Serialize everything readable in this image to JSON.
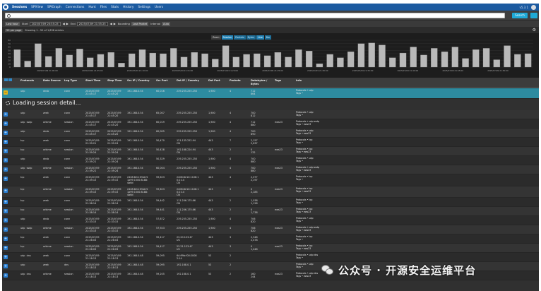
{
  "nav": {
    "items": [
      "Sessions",
      "SPIView",
      "SPIGraph",
      "Connections",
      "Hunt",
      "Files",
      "Stats",
      "History",
      "Settings",
      "Users"
    ],
    "version": "v5.3.1"
  },
  "search": {
    "placeholder": "",
    "button": "Search"
  },
  "timebar": {
    "range": "Last hour",
    "start_label": "Start",
    "start": "2025/07/09 20:55:25",
    "stop_label": "End",
    "stop": "2025/07/09 21:55:25",
    "bounding_label": "Bounding",
    "bounding": "Last Packet",
    "interval_label": "Interval",
    "interval": "Auto"
  },
  "vizbar": {
    "page_size": "50 per page",
    "showing": "Showing 1 - 50 of 1,836 entries"
  },
  "chart_controls": [
    "Zoom",
    "Session",
    "Packets",
    "Bytes",
    "Line",
    "Bar"
  ],
  "chart_data": {
    "type": "bar",
    "ylim": [
      0,
      80
    ],
    "y_ticks": [
      0,
      10,
      20,
      30,
      40,
      50,
      60,
      70,
      80
    ],
    "x_ticks": [
      "2025/07/09 21:00:00",
      "2025/07/09 21:05:00",
      "2025/07/09 21:10:00",
      "2025/07/09 21:15:00",
      "2025/07/09 21:20:00",
      "2025/07/09 21:25:00",
      "2025/07/09 21:30:00",
      "2025/07/09 21:35:00",
      "2025/07/09 21:40:00",
      "2025/07/09 21:45:00",
      "2025/07/09 21:50:00"
    ],
    "values": [
      52,
      18,
      70,
      32,
      56,
      36,
      54,
      28,
      38,
      44,
      12,
      40,
      52,
      42,
      40,
      56,
      30,
      44,
      40,
      24,
      64,
      30,
      38,
      40,
      34,
      44,
      30,
      52,
      48,
      10,
      38,
      28,
      46,
      70,
      72,
      66,
      28,
      42,
      60,
      36,
      56,
      46,
      60,
      26,
      52,
      56,
      22,
      64,
      38,
      40
    ]
  },
  "table": {
    "headers": [
      "Protocols",
      "Data Source",
      "Log Type",
      "Start Time",
      "Stop Time",
      "Src IP / Country",
      "Src Port",
      "Dst IP / Country",
      "Dst Port",
      "Packets",
      "Databytes / Bytes",
      "Tags",
      "Info"
    ],
    "loading_text": "Loading session detail...",
    "rows": [
      {
        "proto": "udp",
        "src": "dnsb",
        "log": "conn",
        "start": "2025/07/09\n21:45:17",
        "stop": "2025/07/09\n21:45:20",
        "srcip": "192.168.0.54",
        "sport": "60,016",
        "dstip": "239.255.255.250",
        "dport": "1,900",
        "pkts": "4",
        "bytes": "712\n864",
        "tags": "",
        "info1": "Protocols • udp",
        "info2": "Tags •"
      },
      {
        "proto": "udp",
        "src": "zeek",
        "log": "conn",
        "start": "2025/07/09\n21:45:17",
        "stop": "2025/07/09\n21:45:20",
        "srcip": "192.168.0.54",
        "sport": "65,007",
        "dstip": "239.255.255.250",
        "dport": "1,900",
        "pkts": "4",
        "bytes": "700\n812",
        "tags": "",
        "info1": "Protocols • udp",
        "info2": "Tags •"
      },
      {
        "proto": "udp  ssdp",
        "src": "arkime",
        "log": "session",
        "start": "2025/07/09\n21:45:17",
        "stop": "2025/07/09\n21:45:20",
        "srcip": "192.168.0.54",
        "sport": "60,019",
        "dstip": "239.255.255.250",
        "dport": "1,900",
        "pkts": "4",
        "bytes": "712\n880",
        "tags": "ews23",
        "info1": "Protocols • udp  ssdp",
        "info2": "Tags • ews23"
      },
      {
        "proto": "udp",
        "src": "dnsb",
        "log": "conn",
        "start": "2025/07/09\n21:45:17",
        "stop": "2025/07/09\n21:45:20",
        "srcip": "192.168.0.54",
        "sport": "60,005",
        "dstip": "239.255.255.250",
        "dport": "1,900",
        "pkts": "4",
        "bytes": "700\n890",
        "tags": "",
        "info1": "Protocols • udp",
        "info2": "Tags • ews23"
      },
      {
        "proto": "tcp",
        "src": "zeek",
        "log": "conn",
        "start": "2025/07/09\n21:39:21",
        "stop": "2025/07/09\n21:39:24",
        "srcip": "192.168.0.54",
        "sport": "50,470",
        "dstip": "121.135.252.94\nCN",
        "dport": "443",
        "pkts": "7",
        "bytes": "2,157\n2,637",
        "tags": "",
        "info1": "Protocols • tcp",
        "info2": "Tags •"
      },
      {
        "proto": "tcp",
        "src": "arkime",
        "log": "session",
        "start": "2025/07/09\n21:39:24",
        "stop": "2025/07/09\n21:39:24",
        "srcip": "192.168.0.54",
        "sport": "50,428",
        "dstip": "192.168.224.94\nCN",
        "dport": "443",
        "pkts": "2",
        "bytes": "0\n132",
        "tags": "ews23",
        "info1": "Protocols • tcp",
        "info2": "Tags • ews23"
      },
      {
        "proto": "udp",
        "src": "dnsb",
        "log": "conn",
        "start": "2025/07/09\n21:39:21",
        "stop": "2025/07/09\n21:39:24",
        "srcip": "192.168.0.54",
        "sport": "50,329",
        "dstip": "239.255.255.250",
        "dport": "1,900",
        "pkts": "4",
        "bytes": "700\n880",
        "tags": "",
        "info1": "Protocols • udp",
        "info2": "Tags •"
      },
      {
        "proto": "udp  ssdp",
        "src": "arkime",
        "log": "session",
        "start": "2025/07/09\n21:39:21",
        "stop": "2025/07/09\n21:39:24",
        "srcip": "192.168.0.54",
        "sport": "60,004",
        "dstip": "239.255.255.250",
        "dport": "1,900",
        "pkts": "4",
        "bytes": "700\n880",
        "tags": "ews23",
        "info1": "Protocols • udp  ssdp",
        "info2": "Tags • ews23"
      },
      {
        "proto": "tcp",
        "src": "zeek",
        "log": "conn",
        "start": "2025/07/09\n21:39:15",
        "stop": "2025/07/09\n21:39:15",
        "srcip": "2408:824:3f4d:f2\n1a99:1500:8188:\n4a6d",
        "sport": "59,623",
        "dstip": "2408:8210:1108:1\n0:2:14\nCN",
        "dport": "443",
        "pkts": "4",
        "bytes": "2,077\n2,197",
        "tags": "",
        "info1": "Protocols • tcp",
        "info2": "Tags •"
      },
      {
        "proto": "tcp",
        "src": "arkime",
        "log": "session",
        "start": "2025/07/09\n21:39:15",
        "stop": "2025/07/09\n21:39:15",
        "srcip": "2408:824:3f4d:f2\n1a99:1500:8188:\n4a6d",
        "sport": "59,623",
        "dstip": "2408:8210:1108:1\n0:2:14\nCN",
        "dport": "443",
        "pkts": "3",
        "bytes": "0\n2,185",
        "tags": "ews23",
        "info1": "Protocols • tcp",
        "info2": "Tags • ews23"
      },
      {
        "proto": "tcp",
        "src": "zeek",
        "log": "conn",
        "start": "2025/07/09\n21:38:14",
        "stop": "2025/07/09\n21:38:14",
        "srcip": "192.168.0.54",
        "sport": "59,442",
        "dstip": "111.206.175.66\nCN",
        "dport": "443",
        "pkts": "2",
        "bytes": "1,038\n1,128",
        "tags": "",
        "info1": "Protocols • tcp",
        "info2": "Tags •"
      },
      {
        "proto": "tcp",
        "src": "arkime",
        "log": "session",
        "start": "2025/07/09\n21:38:14",
        "stop": "2025/07/09\n21:38:14",
        "srcip": "192.168.0.54",
        "sport": "59,441",
        "dstip": "111.206.175.66\nCN",
        "dport": "443",
        "pkts": "2",
        "bytes": "0\n1,738",
        "tags": "ews23",
        "info1": "Protocols • tcp",
        "info2": "Tags • ews23"
      },
      {
        "proto": "udp",
        "src": "dnsb",
        "log": "conn",
        "start": "2025/07/09\n21:33:15",
        "stop": "2025/07/09\n21:33:15",
        "srcip": "192.168.0.54",
        "sport": "57,872",
        "dstip": "239.255.255.250",
        "dport": "1,900",
        "pkts": "4",
        "bytes": "706\n820",
        "tags": "",
        "info1": "Protocols • udp",
        "info2": "Tags •"
      },
      {
        "proto": "udp  ssdp",
        "src": "arkime",
        "log": "session",
        "start": "2025/07/09\n21:33:15",
        "stop": "2025/07/09\n21:33:15",
        "srcip": "192.168.0.54",
        "sport": "57,923",
        "dstip": "239.255.255.250",
        "dport": "1,900",
        "pkts": "4",
        "bytes": "706\n820",
        "tags": "ews23",
        "info1": "Protocols • udp  ssdp",
        "info2": "Tags • ews23"
      },
      {
        "proto": "tcp",
        "src": "zeek",
        "log": "conn",
        "start": "2025/07/09\n21:26:03",
        "stop": "2025/07/09\n21:26:03",
        "srcip": "192.168.0.54",
        "sport": "59,417",
        "dstip": "23.20.123.47\nUS",
        "dport": "443",
        "pkts": "3",
        "bytes": "2,348\n2,478",
        "tags": "",
        "info1": "Protocols • tcp",
        "info2": "Tags •"
      },
      {
        "proto": "tcp",
        "src": "arkime",
        "log": "session",
        "start": "2025/07/09\n21:26:03",
        "stop": "2025/07/09\n21:26:03",
        "srcip": "192.168.0.54",
        "sport": "59,417",
        "dstip": "23.21.123.47\nUS",
        "dport": "443",
        "pkts": "3",
        "bytes": "0\n1,448",
        "tags": "ews23",
        "info1": "Protocols • tcp",
        "info2": "Tags • ews23"
      },
      {
        "proto": "udp  dns",
        "src": "zeek",
        "log": "conn",
        "start": "2025/07/09\n21:18:13",
        "stop": "2025/07/09\n21:18:13",
        "srcip": "192.168.0.48",
        "sport": "59,095",
        "dstip": "64:ff9b:f00:2008\n2:14",
        "dport": "53",
        "pkts": "2",
        "bytes": "",
        "tags": "",
        "info1": "Protocols • udp  dns",
        "info2": "Tags •"
      },
      {
        "proto": "udp",
        "src": "zeek",
        "log": "dns",
        "start": "2025/07/09\n21:18:13",
        "stop": "2025/07/09\n21:18:13",
        "srcip": "192.168.0.48",
        "sport": "59,095",
        "dstip": "192.168.0.1",
        "dport": "53",
        "pkts": "2",
        "bytes": "",
        "tags": "",
        "info1": "Protocols • udp",
        "info2": "Tags •"
      },
      {
        "proto": "udp  dns",
        "src": "arkime",
        "log": "session",
        "start": "2025/07/09\n21:18:13",
        "stop": "2025/07/09\n21:18:13",
        "srcip": "192.168.0.48",
        "sport": "59,205",
        "dstip": "192.168.0.1",
        "dport": "53",
        "pkts": "2",
        "bytes": "160\n244",
        "tags": "ews23",
        "info1": "Protocols • udp  dns",
        "info2": "Tags • ews23"
      }
    ]
  },
  "watermark": "公众号 · 开源安全运维平台"
}
